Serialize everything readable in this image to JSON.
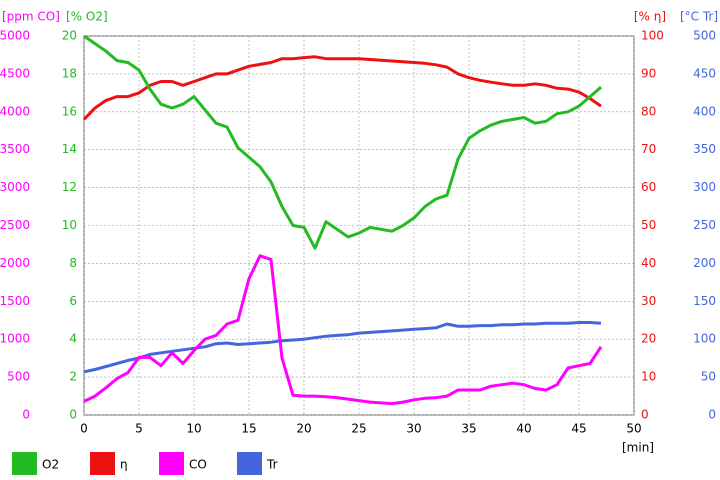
{
  "chart_data": {
    "type": "line",
    "x_label": "[min]",
    "xlim": [
      0,
      50
    ],
    "xticks": [
      0,
      5,
      10,
      15,
      20,
      25,
      30,
      35,
      40,
      45,
      50
    ],
    "grid": true,
    "axes": [
      {
        "label": "[ppm CO]",
        "color": "#ff00ff",
        "side": "left",
        "lim": [
          0,
          5000
        ],
        "ticks": [
          0,
          500,
          1000,
          1500,
          2000,
          2500,
          3000,
          3500,
          4000,
          4500,
          5000
        ]
      },
      {
        "label": "[% O2]",
        "color": "#22bb22",
        "side": "left",
        "lim": [
          0,
          20
        ],
        "ticks": [
          0,
          2,
          4,
          6,
          8,
          10,
          12,
          14,
          16,
          18,
          20
        ]
      },
      {
        "label": "[% η]",
        "color": "#ee1111",
        "side": "right",
        "lim": [
          0,
          100
        ],
        "ticks": [
          0,
          10,
          20,
          30,
          40,
          50,
          60,
          70,
          80,
          90,
          100
        ]
      },
      {
        "label": "[°C Tr]",
        "color": "#4466dd",
        "side": "right",
        "lim": [
          0,
          500
        ],
        "ticks": [
          0,
          50,
          100,
          150,
          200,
          250,
          300,
          350,
          400,
          450,
          500
        ]
      }
    ],
    "x": [
      0,
      1,
      2,
      3,
      4,
      5,
      6,
      7,
      8,
      9,
      10,
      11,
      12,
      13,
      14,
      15,
      16,
      17,
      18,
      19,
      20,
      21,
      22,
      23,
      24,
      25,
      26,
      27,
      28,
      29,
      30,
      31,
      32,
      33,
      34,
      35,
      36,
      37,
      38,
      39,
      40,
      41,
      42,
      43,
      44,
      45,
      46,
      47
    ],
    "series": [
      {
        "name": "O2",
        "color": "#22bb22",
        "axis": 1,
        "values": [
          20,
          19.6,
          19.2,
          18.7,
          18.6,
          18.2,
          17.2,
          16.4,
          16.2,
          16.4,
          16.8,
          16.1,
          15.4,
          15.2,
          14.1,
          13.6,
          13.1,
          12.3,
          11.0,
          10.0,
          9.9,
          8.8,
          10.2,
          9.8,
          9.4,
          9.6,
          9.9,
          9.8,
          9.7,
          10.0,
          10.4,
          11.0,
          11.4,
          11.6,
          13.5,
          14.6,
          15.0,
          15.3,
          15.5,
          15.6,
          15.7,
          15.4,
          15.5,
          15.9,
          16.0,
          16.3,
          16.8,
          17.3
        ]
      },
      {
        "name": "η",
        "color": "#ee1111",
        "axis": 2,
        "values": [
          78,
          81,
          83,
          84,
          84,
          85,
          87,
          88,
          88,
          87,
          88,
          89,
          90,
          90,
          91,
          92,
          92.5,
          93,
          94,
          94,
          94.3,
          94.5,
          94,
          94,
          94,
          94,
          93.8,
          93.6,
          93.4,
          93.2,
          93,
          92.8,
          92.4,
          91.8,
          90,
          89,
          88.3,
          87.8,
          87.4,
          87,
          87,
          87.4,
          87,
          86.2,
          86,
          85.2,
          83.5,
          81.5
        ]
      },
      {
        "name": "CO",
        "color": "#ff00ff",
        "axis": 0,
        "values": [
          180,
          250,
          360,
          480,
          560,
          760,
          760,
          650,
          820,
          680,
          850,
          1000,
          1050,
          1200,
          1250,
          1800,
          2100,
          2050,
          750,
          260,
          250,
          250,
          240,
          230,
          210,
          190,
          170,
          160,
          150,
          170,
          200,
          220,
          230,
          250,
          330,
          330,
          330,
          380,
          400,
          420,
          400,
          350,
          330,
          400,
          620,
          650,
          680,
          900
        ]
      },
      {
        "name": "Tr",
        "color": "#4466dd",
        "axis": 3,
        "values": [
          57,
          60,
          64,
          68,
          72,
          75,
          80,
          82,
          84,
          86,
          88,
          90,
          94,
          95,
          93,
          94,
          95,
          96,
          98,
          99,
          100,
          102,
          104,
          105,
          106,
          108,
          109,
          110,
          111,
          112,
          113,
          114,
          115,
          120,
          117,
          117,
          118,
          118,
          119,
          119,
          120,
          120,
          121,
          121,
          121,
          122,
          122,
          121
        ]
      }
    ]
  }
}
